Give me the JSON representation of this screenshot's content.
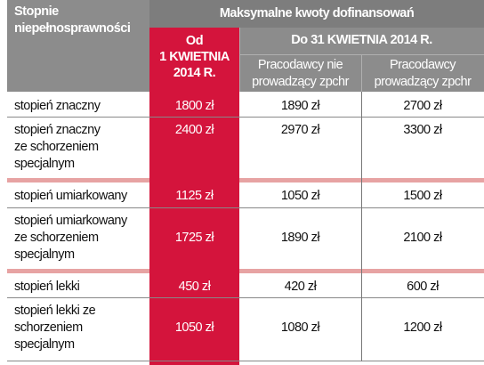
{
  "header": {
    "row_header": "Stopnie niepełnosprawności",
    "main_title": "Maksymalne kwoty dofinansowań",
    "col_from": "Od 1 KWIETNIA 2014 R.",
    "col_from_lines": [
      "Od",
      "1 KWIETNIA",
      "2014 R."
    ],
    "col_until": "Do 31 KWIETNIA 2014 R.",
    "sub_not_zpchr_lines": [
      "Pracodawcy nie",
      "prowadzący zpchr"
    ],
    "sub_zpchr_lines": [
      "Pracodawcy",
      "prowadzący zpchr"
    ]
  },
  "rows": [
    {
      "label_lines": [
        "stopień znaczny"
      ],
      "from_april": "1800 zł",
      "not_zpchr": "1890 zł",
      "zpchr": "2700 zł"
    },
    {
      "label_lines": [
        "stopień znaczny",
        "ze schorzeniem",
        "specjalnym"
      ],
      "from_april": "2400 zł",
      "not_zpchr": "2970 zł",
      "zpchr": "3300 zł"
    },
    {
      "label_lines": [
        "stopień umiarkowany"
      ],
      "from_april": "1125 zł",
      "not_zpchr": "1050 zł",
      "zpchr": "1500 zł"
    },
    {
      "label_lines": [
        "stopień umiarkowany",
        "ze schorzeniem",
        "specjalnym"
      ],
      "from_april": "1725 zł",
      "not_zpchr": "1890 zł",
      "zpchr": "2100 zł"
    },
    {
      "label_lines": [
        "stopień lekki"
      ],
      "from_april": "450 zł",
      "not_zpchr": "420 zł",
      "zpchr": "600 zł"
    },
    {
      "label_lines": [
        "stopień lekki ze",
        "schorzeniem",
        "specjalnym"
      ],
      "from_april": "1050 zł",
      "not_zpchr": "1080 zł",
      "zpchr": "1200 zł"
    }
  ],
  "colors": {
    "header_gray": "#8c8c8c",
    "accent_red": "#d4143c",
    "separator_pink": "#e7a3a3"
  }
}
